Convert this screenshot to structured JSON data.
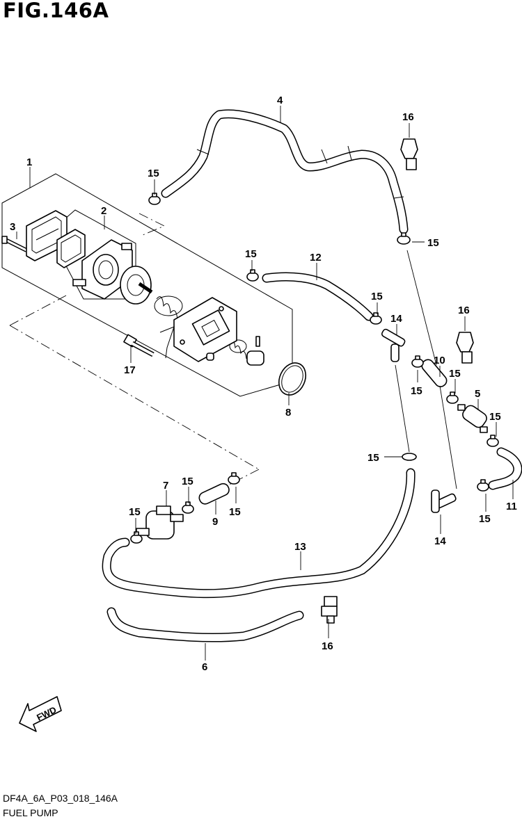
{
  "figure": {
    "title": "FIG.146A",
    "code": "DF4A_6A_P03_018_146A",
    "name": "FUEL PUMP"
  },
  "callouts": {
    "c1": "1",
    "c2": "2",
    "c3": "3",
    "c4": "4",
    "c5": "5",
    "c6": "6",
    "c7": "7",
    "c8": "8",
    "c9": "9",
    "c10": "10",
    "c11": "11",
    "c12": "12",
    "c13": "13",
    "c14a": "14",
    "c14b": "14",
    "c15a": "15",
    "c15b": "15",
    "c15c": "15",
    "c15d": "15",
    "c15e": "15",
    "c15f": "15",
    "c15g": "15",
    "c15h": "15",
    "c15i": "15",
    "c15j": "15",
    "c15k": "15",
    "c15l": "15",
    "c16a": "16",
    "c16b": "16",
    "c16c": "16",
    "c17": "17"
  },
  "fwd_label": "FWD"
}
